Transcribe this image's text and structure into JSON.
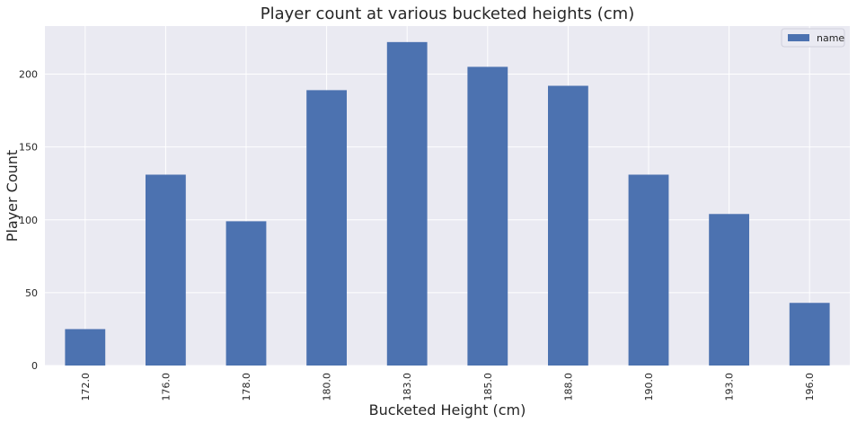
{
  "chart_data": {
    "type": "bar",
    "title": "Player count at various bucketed heights (cm)",
    "xlabel": "Bucketed Height (cm)",
    "ylabel": "Player Count",
    "categories": [
      "172.0",
      "176.0",
      "178.0",
      "180.0",
      "183.0",
      "185.0",
      "188.0",
      "190.0",
      "193.0",
      "196.0"
    ],
    "series": [
      {
        "name": "name",
        "values": [
          25,
          131,
          99,
          189,
          222,
          205,
          192,
          131,
          104,
          43
        ]
      }
    ],
    "ylim": [
      0,
      233
    ],
    "yticks": [
      0,
      50,
      100,
      150,
      200
    ],
    "grid": true,
    "legend_position": "top-right",
    "colors": {
      "bar": "#4c72b0",
      "background": "#eaeaf2",
      "grid": "#ffffff"
    }
  }
}
